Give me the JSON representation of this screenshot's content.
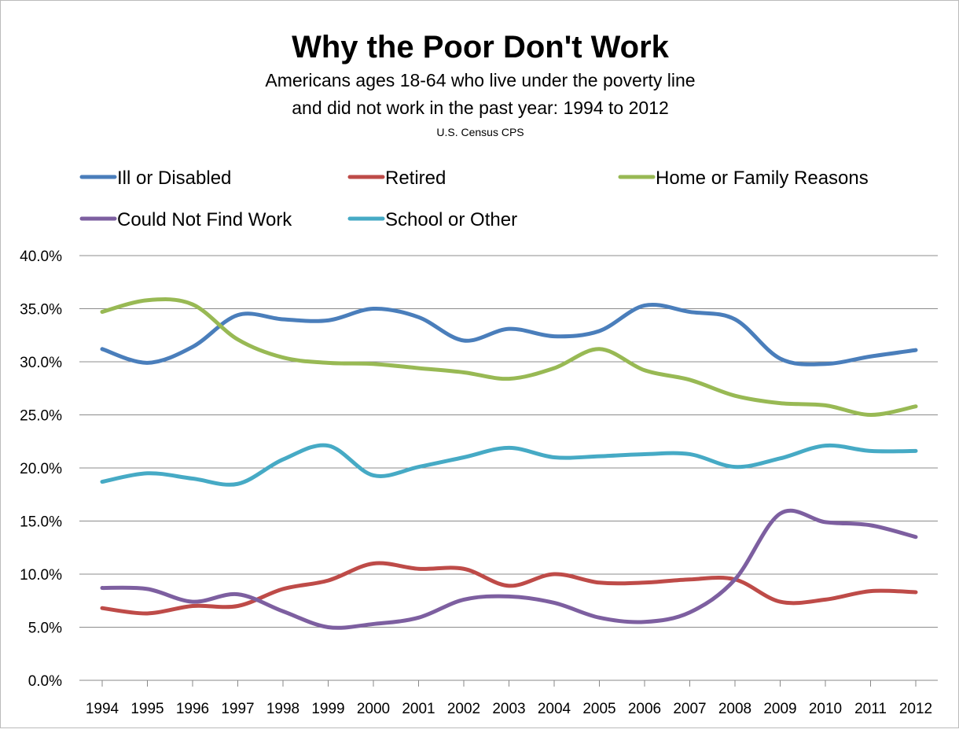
{
  "chart_data": {
    "type": "line",
    "title": "Why the Poor Don't Work",
    "subtitle_line1": "Americans ages 18-64 who live under the poverty line",
    "subtitle_line2": "and did not work in the past year: 1994 to 2012",
    "source": "U.S. Census CPS",
    "xlabel": "",
    "ylabel": "",
    "ylim": [
      0,
      40
    ],
    "yticks": [
      "0.0%",
      "5.0%",
      "10.0%",
      "15.0%",
      "20.0%",
      "25.0%",
      "30.0%",
      "35.0%",
      "40.0%"
    ],
    "grid": true,
    "legend_position": "top",
    "categories": [
      "1994",
      "1995",
      "1996",
      "1997",
      "1998",
      "1999",
      "2000",
      "2001",
      "2002",
      "2003",
      "2004",
      "2005",
      "2006",
      "2007",
      "2008",
      "2009",
      "2010",
      "2011",
      "2012"
    ],
    "series": [
      {
        "name": "Ill or Disabled",
        "color": "#4a7ebb",
        "values": [
          31.2,
          29.9,
          31.4,
          34.4,
          34.0,
          33.9,
          35.0,
          34.2,
          32.0,
          33.1,
          32.4,
          32.9,
          35.3,
          34.7,
          34.0,
          30.3,
          29.8,
          30.5,
          31.1
        ]
      },
      {
        "name": "Retired",
        "color": "#be4b48",
        "values": [
          6.8,
          6.3,
          7.0,
          7.0,
          8.6,
          9.4,
          11.0,
          10.5,
          10.5,
          8.9,
          10.0,
          9.2,
          9.2,
          9.5,
          9.5,
          7.4,
          7.6,
          8.4,
          8.3
        ]
      },
      {
        "name": "Home or Family Reasons",
        "color": "#98b954",
        "values": [
          34.7,
          35.8,
          35.4,
          32.1,
          30.4,
          29.9,
          29.8,
          29.4,
          29.0,
          28.4,
          29.4,
          31.2,
          29.2,
          28.3,
          26.8,
          26.1,
          25.9,
          25.0,
          25.8
        ]
      },
      {
        "name": "Could Not Find Work",
        "color": "#7d5fa0",
        "values": [
          8.7,
          8.6,
          7.4,
          8.1,
          6.5,
          5.0,
          5.3,
          5.9,
          7.6,
          7.9,
          7.3,
          5.9,
          5.5,
          6.4,
          9.5,
          15.7,
          14.9,
          14.6,
          13.5
        ]
      },
      {
        "name": "School or Other",
        "color": "#46aac5",
        "values": [
          18.7,
          19.5,
          19.0,
          18.5,
          20.8,
          22.1,
          19.3,
          20.1,
          21.0,
          21.9,
          21.0,
          21.1,
          21.3,
          21.3,
          20.1,
          20.9,
          22.1,
          21.6,
          21.6
        ]
      }
    ]
  }
}
